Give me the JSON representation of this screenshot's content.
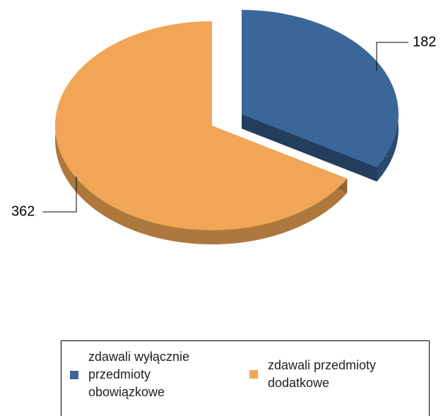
{
  "chart_data": {
    "type": "pie",
    "categories": [
      "zdawali wyłącznie przedmioty obowiązkowe",
      "zdawali przedmioty dodatkowe"
    ],
    "values": [
      182,
      362
    ],
    "colors": [
      "#3b6699",
      "#f0a656"
    ],
    "legend": "bottom"
  }
}
